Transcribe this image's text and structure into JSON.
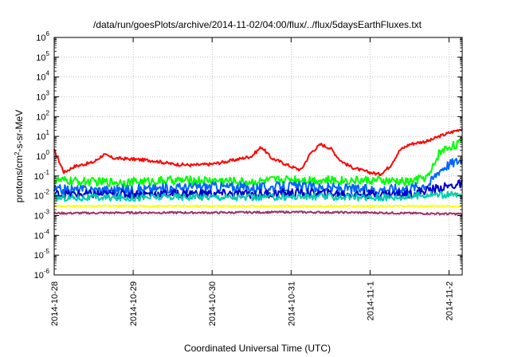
{
  "chart_data": {
    "type": "line",
    "title": "/data/run/goesPlots/archive/2014-11-02/04:00/flux/../flux/5daysEarthFluxes.txt",
    "xlabel": "Coordinated Universal Time (UTC)",
    "ylabel": {
      "base": "protons/cm",
      "sup": "2",
      "rest": "-s-sr-MeV"
    },
    "y_scale": "log",
    "ylim": [
      1e-06,
      1000000.0
    ],
    "xlim": [
      "2014-10-28 00:00",
      "2014-11-02 04:00"
    ],
    "grid": true,
    "legend": "none",
    "x_ticks": [
      "2014-10-28",
      "2014-10-29",
      "2014-10-30",
      "2014-10-31",
      "2014-11-1",
      "2014-11-2"
    ],
    "y_ticks": [
      {
        "base": "10",
        "exp": "-6"
      },
      {
        "base": "10",
        "exp": "-5"
      },
      {
        "base": "10",
        "exp": "-4"
      },
      {
        "base": "10",
        "exp": "-3"
      },
      {
        "base": "10",
        "exp": "-2"
      },
      {
        "base": "10",
        "exp": "-1"
      },
      {
        "base": "10",
        "exp": "0"
      },
      {
        "base": "10",
        "exp": "1"
      },
      {
        "base": "10",
        "exp": "2"
      },
      {
        "base": "10",
        "exp": "3"
      },
      {
        "base": "10",
        "exp": "4"
      },
      {
        "base": "10",
        "exp": "5"
      },
      {
        "base": "10",
        "exp": "6"
      }
    ],
    "series": [
      {
        "color": "#ff0000",
        "x": [
          "2014-10-28 00:00",
          "2014-10-28 03:00",
          "2014-10-28 06:00",
          "2014-10-28 12:00",
          "2014-10-28 15:00",
          "2014-10-28 18:00",
          "2014-10-29 00:00",
          "2014-10-29 06:00",
          "2014-10-29 12:00",
          "2014-10-29 18:00",
          "2014-10-30 00:00",
          "2014-10-30 06:00",
          "2014-10-30 12:00",
          "2014-10-30 15:00",
          "2014-10-30 18:00",
          "2014-10-30 21:00",
          "2014-10-31 00:00",
          "2014-10-31 03:00",
          "2014-10-31 06:00",
          "2014-10-31 09:00",
          "2014-10-31 12:00",
          "2014-10-31 15:00",
          "2014-10-31 18:00",
          "2014-10-31 21:00",
          "2014-11-01 00:00",
          "2014-11-01 03:00",
          "2014-11-01 06:00",
          "2014-11-01 09:00",
          "2014-11-01 12:00",
          "2014-11-01 15:00",
          "2014-11-01 18:00",
          "2014-11-01 21:00",
          "2014-11-02 00:00",
          "2014-11-02 04:00"
        ],
        "y": [
          2,
          0.15,
          0.3,
          0.5,
          1.2,
          0.8,
          0.7,
          0.6,
          0.4,
          0.35,
          0.4,
          0.6,
          1.0,
          3,
          0.8,
          0.5,
          0.3,
          0.2,
          1.5,
          4,
          2.5,
          0.6,
          0.3,
          0.2,
          0.15,
          0.12,
          0.3,
          2,
          4,
          5,
          6,
          10,
          15,
          25
        ]
      },
      {
        "color": "#00ff00",
        "x": [
          "2014-10-28 00:00",
          "2014-10-28 12:00",
          "2014-10-29 00:00",
          "2014-10-29 12:00",
          "2014-10-30 00:00",
          "2014-10-30 12:00",
          "2014-10-31 00:00",
          "2014-10-31 12:00",
          "2014-11-01 00:00",
          "2014-11-01 12:00",
          "2014-11-01 18:00",
          "2014-11-01 21:00",
          "2014-11-02 00:00",
          "2014-11-02 04:00"
        ],
        "y": [
          0.06,
          0.05,
          0.05,
          0.06,
          0.06,
          0.05,
          0.07,
          0.06,
          0.06,
          0.05,
          0.1,
          1.5,
          3,
          5
        ]
      },
      {
        "color": "#0066ff",
        "x": [
          "2014-10-28 00:00",
          "2014-10-28 12:00",
          "2014-10-29 00:00",
          "2014-10-29 12:00",
          "2014-10-30 00:00",
          "2014-10-30 12:00",
          "2014-10-31 00:00",
          "2014-10-31 12:00",
          "2014-11-01 00:00",
          "2014-11-01 12:00",
          "2014-11-01 18:00",
          "2014-11-01 21:00",
          "2014-11-02 00:00",
          "2014-11-02 04:00"
        ],
        "y": [
          0.02,
          0.02,
          0.02,
          0.025,
          0.03,
          0.025,
          0.03,
          0.025,
          0.02,
          0.025,
          0.04,
          0.2,
          0.4,
          0.7
        ]
      },
      {
        "color": "#0000cc",
        "x": [
          "2014-10-28 00:00",
          "2014-10-28 12:00",
          "2014-10-29 00:00",
          "2014-10-29 12:00",
          "2014-10-30 00:00",
          "2014-10-30 12:00",
          "2014-10-31 00:00",
          "2014-10-31 12:00",
          "2014-11-01 00:00",
          "2014-11-01 12:00",
          "2014-11-01 18:00",
          "2014-11-02 00:00",
          "2014-11-02 04:00"
        ],
        "y": [
          0.012,
          0.012,
          0.012,
          0.013,
          0.013,
          0.012,
          0.014,
          0.013,
          0.012,
          0.013,
          0.02,
          0.03,
          0.04
        ]
      },
      {
        "color": "#00ccaa",
        "x": [
          "2014-10-28 00:00",
          "2014-10-28 12:00",
          "2014-10-29 00:00",
          "2014-10-29 12:00",
          "2014-10-30 00:00",
          "2014-10-30 12:00",
          "2014-10-31 00:00",
          "2014-10-31 12:00",
          "2014-11-01 00:00",
          "2014-11-01 12:00",
          "2014-11-01 18:00",
          "2014-11-02 00:00",
          "2014-11-02 04:00"
        ],
        "y": [
          0.008,
          0.008,
          0.008,
          0.009,
          0.009,
          0.008,
          0.009,
          0.009,
          0.008,
          0.009,
          0.012,
          0.011,
          0.01
        ]
      },
      {
        "color": "#ffff00",
        "x": [
          "2014-10-28 00:00",
          "2014-10-29 00:00",
          "2014-10-30 00:00",
          "2014-10-31 00:00",
          "2014-11-01 00:00",
          "2014-11-02 04:00"
        ],
        "y": [
          0.003,
          0.003,
          0.003,
          0.003,
          0.003,
          0.003
        ]
      },
      {
        "color": "#993366",
        "x": [
          "2014-10-28 00:00",
          "2014-10-29 00:00",
          "2014-10-30 00:00",
          "2014-10-31 00:00",
          "2014-11-01 00:00",
          "2014-11-02 04:00"
        ],
        "y": [
          0.0013,
          0.0014,
          0.0014,
          0.0015,
          0.0014,
          0.0012
        ]
      }
    ]
  }
}
